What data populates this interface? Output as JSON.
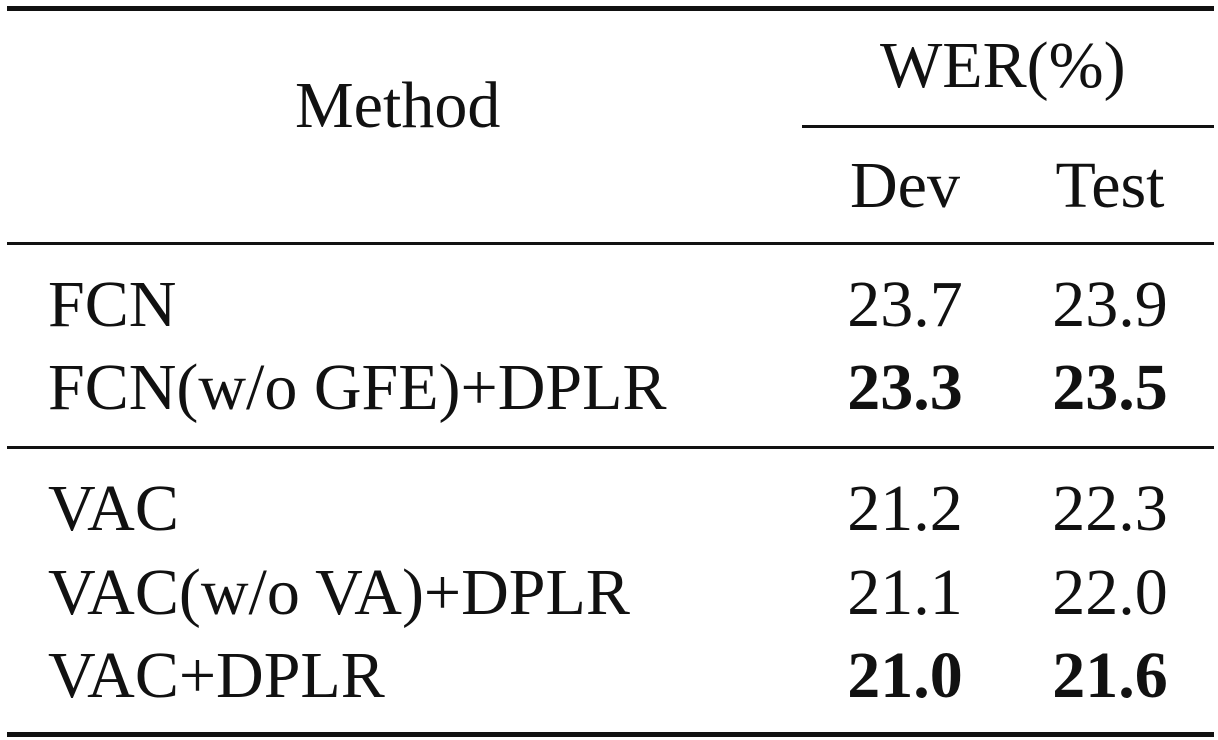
{
  "table": {
    "header": {
      "method": "Method",
      "metric_group": "WER(%)",
      "dev": "Dev",
      "test": "Test"
    },
    "groups": [
      {
        "rows": [
          {
            "method": "FCN",
            "dev": "23.7",
            "test": "23.9",
            "best": false
          },
          {
            "method": "FCN(w/o GFE)+DPLR",
            "dev": "23.3",
            "test": "23.5",
            "best": true
          }
        ]
      },
      {
        "rows": [
          {
            "method": "VAC",
            "dev": "21.2",
            "test": "22.3",
            "best": false
          },
          {
            "method": "VAC(w/o VA)+DPLR",
            "dev": "21.1",
            "test": "22.0",
            "best": false
          },
          {
            "method": "VAC+DPLR",
            "dev": "21.0",
            "test": "21.6",
            "best": true
          }
        ]
      }
    ]
  }
}
